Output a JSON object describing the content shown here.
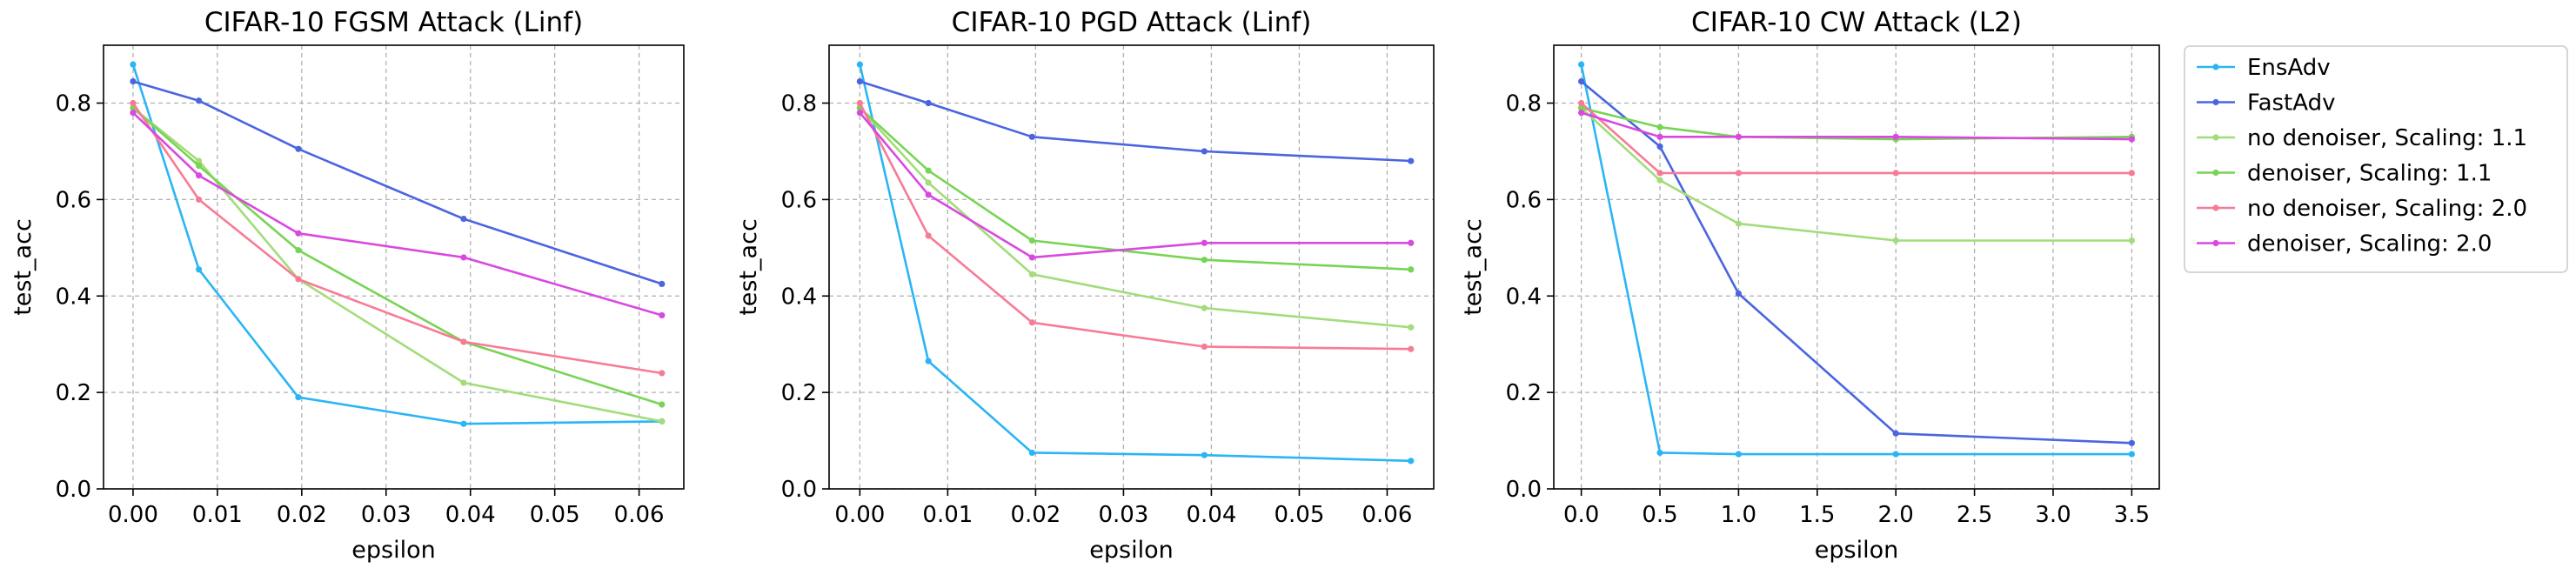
{
  "chart_data": [
    {
      "type": "line",
      "title": "CIFAR-10 FGSM Attack (Linf)",
      "xlabel": "epsilon",
      "ylabel": "test_acc",
      "xlim": [
        -0.0035,
        0.0653
      ],
      "ylim": [
        0.0,
        0.92
      ],
      "xticks": [
        0.0,
        0.01,
        0.02,
        0.03,
        0.04,
        0.05,
        0.06
      ],
      "xtick_labels": [
        "0.00",
        "0.01",
        "0.02",
        "0.03",
        "0.04",
        "0.05",
        "0.06"
      ],
      "yticks": [
        0.0,
        0.2,
        0.4,
        0.6,
        0.8
      ],
      "ytick_labels": [
        "0.0",
        "0.2",
        "0.4",
        "0.6",
        "0.8"
      ],
      "grid": true,
      "x": [
        0.0,
        0.0078,
        0.0196,
        0.0392,
        0.0627
      ],
      "series": [
        {
          "name": "EnsAdv",
          "values": [
            0.88,
            0.455,
            0.19,
            0.135,
            0.14
          ]
        },
        {
          "name": "FastAdv",
          "values": [
            0.845,
            0.805,
            0.705,
            0.56,
            0.425
          ]
        },
        {
          "name": "no denoiser, Scaling: 1.1",
          "values": [
            0.79,
            0.68,
            0.435,
            0.22,
            0.14
          ]
        },
        {
          "name": "denoiser, Scaling: 1.1",
          "values": [
            0.79,
            0.67,
            0.495,
            0.305,
            0.175
          ]
        },
        {
          "name": "no denoiser, Scaling: 2.0",
          "values": [
            0.8,
            0.6,
            0.435,
            0.305,
            0.24
          ]
        },
        {
          "name": "denoiser, Scaling: 2.0",
          "values": [
            0.78,
            0.65,
            0.53,
            0.48,
            0.36
          ]
        }
      ]
    },
    {
      "type": "line",
      "title": "CIFAR-10 PGD Attack (Linf)",
      "xlabel": "epsilon",
      "ylabel": "test_acc",
      "xlim": [
        -0.0035,
        0.0653
      ],
      "ylim": [
        0.0,
        0.92
      ],
      "xticks": [
        0.0,
        0.01,
        0.02,
        0.03,
        0.04,
        0.05,
        0.06
      ],
      "xtick_labels": [
        "0.00",
        "0.01",
        "0.02",
        "0.03",
        "0.04",
        "0.05",
        "0.06"
      ],
      "yticks": [
        0.0,
        0.2,
        0.4,
        0.6,
        0.8
      ],
      "ytick_labels": [
        "0.0",
        "0.2",
        "0.4",
        "0.6",
        "0.8"
      ],
      "grid": true,
      "x": [
        0.0,
        0.0078,
        0.0196,
        0.0392,
        0.0627
      ],
      "series": [
        {
          "name": "EnsAdv",
          "values": [
            0.88,
            0.265,
            0.075,
            0.07,
            0.058
          ]
        },
        {
          "name": "FastAdv",
          "values": [
            0.845,
            0.8,
            0.73,
            0.7,
            0.68
          ]
        },
        {
          "name": "no denoiser, Scaling: 1.1",
          "values": [
            0.79,
            0.635,
            0.445,
            0.375,
            0.335
          ]
        },
        {
          "name": "denoiser, Scaling: 1.1",
          "values": [
            0.79,
            0.66,
            0.515,
            0.475,
            0.455
          ]
        },
        {
          "name": "no denoiser, Scaling: 2.0",
          "values": [
            0.8,
            0.525,
            0.345,
            0.295,
            0.29
          ]
        },
        {
          "name": "denoiser, Scaling: 2.0",
          "values": [
            0.78,
            0.61,
            0.48,
            0.51,
            0.51
          ]
        }
      ]
    },
    {
      "type": "line",
      "title": "CIFAR-10 CW Attack (L2)",
      "xlabel": "epsilon",
      "ylabel": "test_acc",
      "xlim": [
        -0.175,
        3.675
      ],
      "ylim": [
        0.0,
        0.92
      ],
      "xticks": [
        0.0,
        0.5,
        1.0,
        1.5,
        2.0,
        2.5,
        3.0,
        3.5
      ],
      "xtick_labels": [
        "0.0",
        "0.5",
        "1.0",
        "1.5",
        "2.0",
        "2.5",
        "3.0",
        "3.5"
      ],
      "yticks": [
        0.0,
        0.2,
        0.4,
        0.6,
        0.8
      ],
      "ytick_labels": [
        "0.0",
        "0.2",
        "0.4",
        "0.6",
        "0.8"
      ],
      "grid": true,
      "x": [
        0.0,
        0.5,
        1.0,
        2.0,
        3.5
      ],
      "series": [
        {
          "name": "EnsAdv",
          "values": [
            0.88,
            0.075,
            0.072,
            0.072,
            0.072
          ]
        },
        {
          "name": "FastAdv",
          "values": [
            0.845,
            0.71,
            0.405,
            0.115,
            0.095
          ]
        },
        {
          "name": "no denoiser, Scaling: 1.1",
          "values": [
            0.79,
            0.64,
            0.55,
            0.515,
            0.515
          ]
        },
        {
          "name": "denoiser, Scaling: 1.1",
          "values": [
            0.79,
            0.75,
            0.73,
            0.725,
            0.73
          ]
        },
        {
          "name": "no denoiser, Scaling: 2.0",
          "values": [
            0.8,
            0.655,
            0.655,
            0.655,
            0.655
          ]
        },
        {
          "name": "denoiser, Scaling: 2.0",
          "values": [
            0.78,
            0.73,
            0.73,
            0.73,
            0.725
          ]
        }
      ]
    }
  ],
  "legend": {
    "position": "outside-right",
    "entries": [
      "EnsAdv",
      "FastAdv",
      "no denoiser, Scaling: 1.1",
      "denoiser, Scaling: 1.1",
      "no denoiser, Scaling: 2.0",
      "denoiser, Scaling: 2.0"
    ]
  },
  "colors": {
    "EnsAdv": "#2bb5f5",
    "FastAdv": "#4a65e0",
    "no denoiser, Scaling: 1.1": "#a3dc7a",
    "denoiser, Scaling: 1.1": "#78d455",
    "no denoiser, Scaling: 2.0": "#f87b96",
    "denoiser, Scaling: 2.0": "#d949e0",
    "grid": "#b0b0b0",
    "axes": "#000000"
  }
}
